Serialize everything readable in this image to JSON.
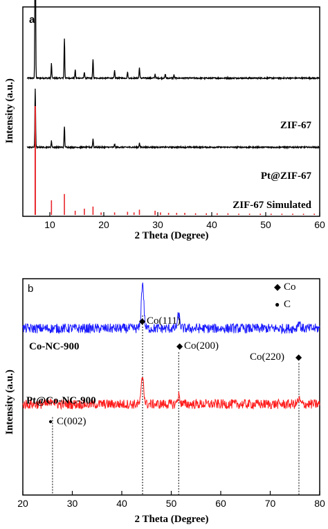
{
  "chart_data": [
    {
      "type": "line",
      "panel_label": "a",
      "xlabel": "2 Theta (Degree)",
      "ylabel": "Intensity (a.u.)",
      "xlim": [
        5,
        60
      ],
      "xticks": [
        10,
        20,
        30,
        40,
        50,
        60
      ],
      "yticks_shown": false,
      "series": [
        {
          "name": "ZIF-67",
          "color": "#000000",
          "offset": 0.66,
          "peaks": [
            [
              7.3,
              1.0
            ],
            [
              10.3,
              0.07
            ],
            [
              12.7,
              0.19
            ],
            [
              14.7,
              0.04
            ],
            [
              16.4,
              0.03
            ],
            [
              18.0,
              0.09
            ],
            [
              22.0,
              0.035
            ],
            [
              24.4,
              0.03
            ],
            [
              26.6,
              0.05
            ],
            [
              29.5,
              0.02
            ],
            [
              31.4,
              0.02
            ],
            [
              33.0,
              0.015
            ]
          ]
        },
        {
          "name": "Pt@ZIF-67",
          "color": "#000000",
          "offset": 0.33,
          "peaks": [
            [
              7.3,
              0.28
            ],
            [
              10.3,
              0.03
            ],
            [
              12.7,
              0.1
            ],
            [
              18.0,
              0.04
            ],
            [
              22.0,
              0.015
            ],
            [
              26.6,
              0.02
            ]
          ]
        },
        {
          "name": "ZIF-67 Simulated",
          "color": "#e8262b",
          "style": "sticks",
          "sticks": [
            [
              7.3,
              0.52
            ],
            [
              10.3,
              0.07
            ],
            [
              12.7,
              0.1
            ],
            [
              14.7,
              0.02
            ],
            [
              16.4,
              0.03
            ],
            [
              18.0,
              0.04
            ],
            [
              19.5,
              0.012
            ],
            [
              22.0,
              0.012
            ],
            [
              24.4,
              0.015
            ],
            [
              25.6,
              0.012
            ],
            [
              26.6,
              0.025
            ],
            [
              29.5,
              0.02
            ],
            [
              30.5,
              0.012
            ],
            [
              32.0,
              0.01
            ],
            [
              33.5,
              0.01
            ],
            [
              35.0,
              0.01
            ],
            [
              37.0,
              0.008
            ],
            [
              39.0,
              0.008
            ],
            [
              41.0,
              0.008
            ],
            [
              43.0,
              0.008
            ],
            [
              45.0,
              0.006
            ],
            [
              47.0,
              0.006
            ],
            [
              49.0,
              0.006
            ],
            [
              51.0,
              0.006
            ],
            [
              53.0,
              0.006
            ],
            [
              55.0,
              0.006
            ],
            [
              57.0,
              0.006
            ],
            [
              59.0,
              0.006
            ]
          ]
        }
      ]
    },
    {
      "type": "line",
      "panel_label": "b",
      "xlabel": "2 Theta (Degree)",
      "ylabel": "Intensity (a.u.)",
      "xlim": [
        20,
        80
      ],
      "xticks": [
        20,
        30,
        40,
        50,
        60,
        70,
        80
      ],
      "yticks_shown": false,
      "legend": {
        "placement": "top-right",
        "entries": [
          "Co",
          "C"
        ]
      },
      "series": [
        {
          "name": "Co-NC-900",
          "color": "#1a1aff",
          "baseline": 0.77,
          "peaks": [
            [
              44.2,
              0.21
            ],
            [
              51.5,
              0.06
            ],
            [
              75.8,
              0.03
            ]
          ]
        },
        {
          "name": "Pt@Co-NC-900",
          "color": "#ff1a1a",
          "baseline": 0.42,
          "peaks": [
            [
              26.0,
              0.025
            ],
            [
              44.2,
              0.13
            ],
            [
              51.5,
              0.04
            ],
            [
              75.8,
              0.02
            ]
          ]
        }
      ],
      "annotations": [
        {
          "text": "Co(111)",
          "marker": "◆",
          "x": 44.2
        },
        {
          "text": "Co(200)",
          "marker": "◆",
          "x": 51.5
        },
        {
          "text": "Co(220)",
          "marker": "◆",
          "x": 75.8
        },
        {
          "text": "C(002)",
          "marker": "●",
          "x": 26.0
        }
      ],
      "dotted_reference_lines": [
        26.0,
        44.2,
        51.5,
        75.8
      ]
    }
  ],
  "labels": {
    "a": {
      "panel": "a",
      "ylabel": "Intensity (a.u.)",
      "xlabel": "2 Theta (Degree)",
      "series1": "ZIF-67",
      "series2": "Pt@ZIF-67",
      "series3": "ZIF-67 Simulated"
    },
    "b": {
      "panel": "b",
      "ylabel": "Intensity (a.u.)",
      "xlabel": "2 Theta (Degree)",
      "series1": "Co-NC-900",
      "series2": "Pt@Co-NC-900",
      "legend1": "Co",
      "legend2": "C",
      "ann1": "Co(111)",
      "ann2": "Co(200)",
      "ann3": "Co(220)",
      "ann4": "C(002)",
      "diamond": "◆",
      "dot": "●"
    }
  }
}
